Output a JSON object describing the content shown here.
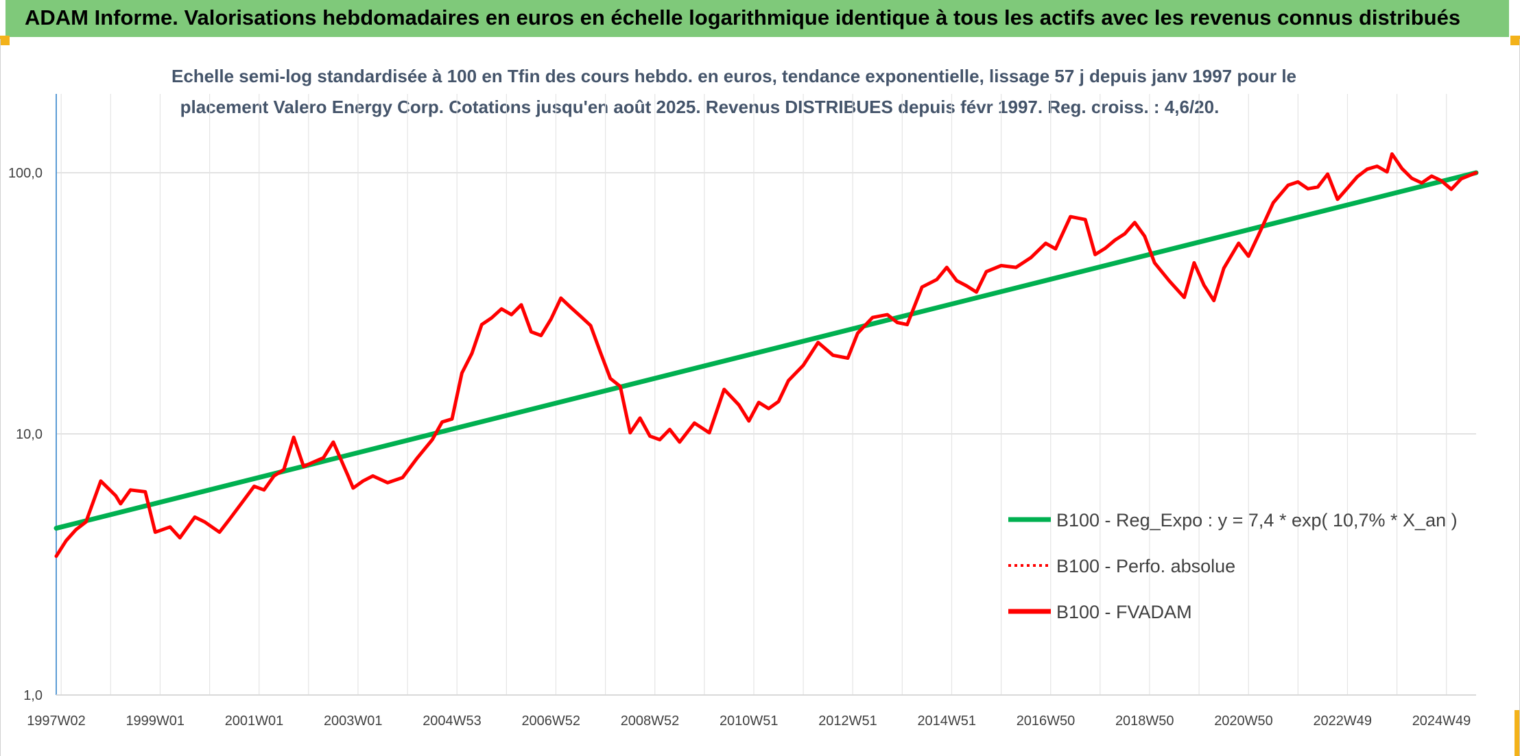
{
  "header": {
    "title": "ADAM Informe. Valorisations hebdomadaires en euros en échelle logarithmique identique à tous les actifs avec les revenus connus distribués"
  },
  "chart_data": {
    "type": "line",
    "title_line1": "Echelle semi-log standardisée à 100 en Tfin des cours hebdo. en euros, tendance exponentielle, lissage 57 j depuis janv 1997 pour le",
    "title_line2": "placement Valero Energy Corp. Cotations jusqu'en août 2025. Revenus DISTRIBUES depuis févr 1997. Reg. croiss. : 4,6/20.",
    "y_scale": "log",
    "ylim": [
      1,
      180
    ],
    "y_ticks": [
      {
        "value": 1,
        "label": "1,0"
      },
      {
        "value": 10,
        "label": "10,0"
      },
      {
        "value": 100,
        "label": "100,0"
      }
    ],
    "xlim": [
      1997.0,
      2025.7
    ],
    "x_ticks": [
      {
        "value": 1997.0,
        "label": "1997W02"
      },
      {
        "value": 1999.0,
        "label": "1999W01"
      },
      {
        "value": 2001.0,
        "label": "2001W01"
      },
      {
        "value": 2003.0,
        "label": "2003W01"
      },
      {
        "value": 2005.0,
        "label": "2004W53"
      },
      {
        "value": 2007.0,
        "label": "2006W52"
      },
      {
        "value": 2009.0,
        "label": "2008W52"
      },
      {
        "value": 2011.0,
        "label": "2010W51"
      },
      {
        "value": 2013.0,
        "label": "2012W51"
      },
      {
        "value": 2015.0,
        "label": "2014W51"
      },
      {
        "value": 2017.0,
        "label": "2016W50"
      },
      {
        "value": 2019.0,
        "label": "2018W50"
      },
      {
        "value": 2021.0,
        "label": "2020W50"
      },
      {
        "value": 2023.0,
        "label": "2022W49"
      },
      {
        "value": 2025.0,
        "label": "2024W49"
      }
    ],
    "grid": "vertical",
    "legend_position": "right",
    "series": [
      {
        "name": "B100 - Reg_Expo : y = 7,4 * exp( 10,7% *  X_an )",
        "color": "#00b050",
        "style": "solid",
        "x": [
          1997.0,
          2025.7
        ],
        "y": [
          4.35,
          100.0
        ]
      },
      {
        "name": "B100 - Perfo. absolue",
        "color": "#ff0000",
        "style": "dotted",
        "x": [],
        "y": []
      },
      {
        "name": "B100 - FVADAM",
        "color": "#ff0000",
        "style": "solid",
        "x": [
          1997.0,
          1997.2,
          1997.4,
          1997.6,
          1997.9,
          1998.2,
          1998.3,
          1998.5,
          1998.8,
          1999.0,
          1999.3,
          1999.5,
          1999.8,
          2000.0,
          2000.3,
          2000.5,
          2000.8,
          2001.0,
          2001.2,
          2001.4,
          2001.6,
          2001.8,
          2002.0,
          2002.2,
          2002.4,
          2002.6,
          2002.9,
          2003.0,
          2003.2,
          2003.4,
          2003.7,
          2004.0,
          2004.3,
          2004.6,
          2004.8,
          2005.0,
          2005.2,
          2005.4,
          2005.6,
          2005.8,
          2006.0,
          2006.2,
          2006.4,
          2006.6,
          2006.8,
          2007.0,
          2007.2,
          2007.4,
          2007.6,
          2007.8,
          2008.0,
          2008.2,
          2008.4,
          2008.6,
          2008.8,
          2009.0,
          2009.2,
          2009.4,
          2009.6,
          2009.9,
          2010.2,
          2010.5,
          2010.8,
          2011.0,
          2011.2,
          2011.4,
          2011.6,
          2011.8,
          2012.1,
          2012.4,
          2012.7,
          2013.0,
          2013.2,
          2013.5,
          2013.8,
          2014.0,
          2014.2,
          2014.5,
          2014.8,
          2015.0,
          2015.2,
          2015.4,
          2015.6,
          2015.8,
          2016.1,
          2016.4,
          2016.7,
          2017.0,
          2017.2,
          2017.5,
          2017.8,
          2018.0,
          2018.2,
          2018.4,
          2018.6,
          2018.8,
          2019.0,
          2019.2,
          2019.5,
          2019.8,
          2020.0,
          2020.2,
          2020.4,
          2020.6,
          2020.9,
          2021.1,
          2021.3,
          2021.6,
          2021.9,
          2022.1,
          2022.3,
          2022.5,
          2022.7,
          2022.9,
          2023.1,
          2023.3,
          2023.5,
          2023.7,
          2023.9,
          2024.0,
          2024.2,
          2024.4,
          2024.6,
          2024.8,
          2025.0,
          2025.2,
          2025.4,
          2025.7
        ],
        "y": [
          3.4,
          3.9,
          4.3,
          4.6,
          6.6,
          5.8,
          5.4,
          6.1,
          6.0,
          4.2,
          4.4,
          4.0,
          4.8,
          4.6,
          4.2,
          4.7,
          5.6,
          6.3,
          6.1,
          6.9,
          7.3,
          9.7,
          7.5,
          7.8,
          8.1,
          9.3,
          6.9,
          6.2,
          6.6,
          6.9,
          6.5,
          6.8,
          8.1,
          9.5,
          11.1,
          11.4,
          17.1,
          20.3,
          26.2,
          27.8,
          30.1,
          28.6,
          31.2,
          24.6,
          23.8,
          27.5,
          33.1,
          30.5,
          28.2,
          26.0,
          20.5,
          16.3,
          15.2,
          10.1,
          11.5,
          9.8,
          9.5,
          10.4,
          9.3,
          11.0,
          10.1,
          14.8,
          12.9,
          11.2,
          13.2,
          12.5,
          13.3,
          16.0,
          18.3,
          22.4,
          20.0,
          19.5,
          24.3,
          27.9,
          28.6,
          26.7,
          26.2,
          36.5,
          39.0,
          43.4,
          38.6,
          36.9,
          34.9,
          41.8,
          44.1,
          43.4,
          47.3,
          53.7,
          51.1,
          67.9,
          66.2,
          48.6,
          51.3,
          55.2,
          58.4,
          64.5,
          57.1,
          45.2,
          38.5,
          33.3,
          45.2,
          37.1,
          32.4,
          43.1,
          53.7,
          47.9,
          57.6,
          76.8,
          89.6,
          92.2,
          86.8,
          88.2,
          98.8,
          79.1,
          87.4,
          96.6,
          103.2,
          105.9,
          100.7,
          118.0,
          103.8,
          95.2,
          91.4,
          97.1,
          93.1,
          86.4,
          94.8,
          100.0
        ]
      }
    ]
  }
}
